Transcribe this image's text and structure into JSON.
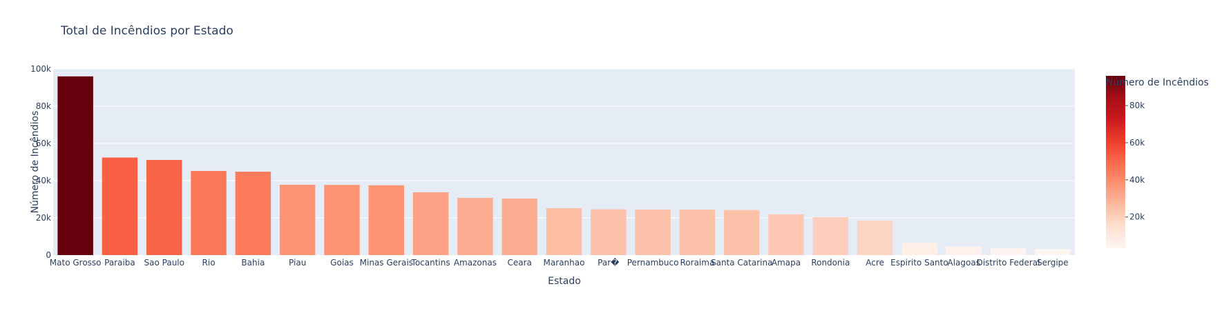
{
  "chart_data": {
    "type": "bar",
    "title": "Total de Incêndios por Estado",
    "xlabel": "Estado",
    "ylabel": "Número de Incêndios",
    "categories": [
      "Mato Grosso",
      "Paraiba",
      "Sao Paulo",
      "Rio",
      "Bahia",
      "Piau",
      "Goias",
      "Minas Gerais",
      "Tocantins",
      "Amazonas",
      "Ceara",
      "Maranhao",
      "Par�",
      "Pernambuco",
      "Roraima",
      "Santa Catarina",
      "Amapa",
      "Rondonia",
      "Acre",
      "Espirito Santo",
      "Alagoas",
      "Distrito Federal",
      "Sergipe"
    ],
    "values": [
      96000,
      52400,
      51100,
      45200,
      44800,
      37800,
      37700,
      37500,
      33700,
      30700,
      30400,
      25200,
      24600,
      24500,
      24400,
      24200,
      21900,
      20300,
      18500,
      6500,
      4600,
      3600,
      3200
    ],
    "ylim": [
      0,
      100000
    ],
    "yticks": [
      0,
      20000,
      40000,
      60000,
      80000,
      100000
    ],
    "ytick_labels": [
      "0",
      "20k",
      "40k",
      "60k",
      "80k",
      "100k"
    ],
    "grid": true,
    "colorbar": {
      "title": "Número de Incêndios",
      "colorscale": "Reds",
      "range": [
        3200,
        96000
      ],
      "tick_values": [
        20000,
        40000,
        60000,
        80000
      ],
      "tick_labels": [
        "20k",
        "40k",
        "60k",
        "80k"
      ]
    },
    "colors": {
      "plot_bg": "#e5ecf6",
      "grid": "#ffffff",
      "text": "#2a3f5f",
      "reds": [
        "#fff5f0",
        "#fee0d2",
        "#fcbba1",
        "#fc9272",
        "#fb6a4a",
        "#ef3b2c",
        "#cb181d",
        "#a50f15",
        "#67000d"
      ]
    }
  }
}
